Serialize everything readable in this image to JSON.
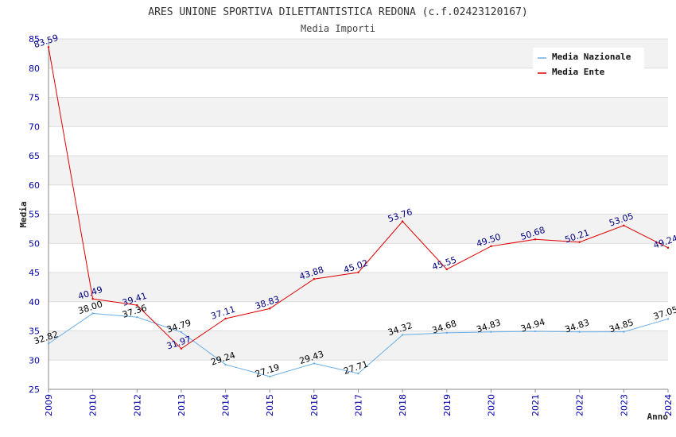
{
  "chart_data": {
    "type": "line",
    "title": "ARES UNIONE SPORTIVA DILETTANTISTICA REDONA (c.f.02423120167)",
    "subtitle": "Media Importi",
    "xlabel": "Anno",
    "ylabel": "Media",
    "ylim": [
      25,
      85
    ],
    "yticks": [
      25,
      30,
      35,
      40,
      45,
      50,
      55,
      60,
      65,
      70,
      75,
      80,
      85
    ],
    "categories": [
      "2009",
      "2010",
      "2012",
      "2013",
      "2014",
      "2015",
      "2016",
      "2017",
      "2018",
      "2019",
      "2020",
      "2021",
      "2022",
      "2023",
      "2024"
    ],
    "series": [
      {
        "name": "Media Nazionale",
        "color": "#6aaee6",
        "label_color": "#000000",
        "values": [
          32.82,
          38.0,
          37.36,
          34.79,
          29.24,
          27.19,
          29.43,
          27.71,
          34.32,
          34.68,
          34.83,
          34.94,
          34.83,
          34.85,
          37.05
        ],
        "labels": [
          "32.82",
          "38.00",
          "37.36",
          "34.79",
          "29.24",
          "27.19",
          "29.43",
          "27.71",
          "34.32",
          "34.68",
          "34.83",
          "34.94",
          "34.83",
          "34.85",
          "37.05"
        ]
      },
      {
        "name": "Media Ente",
        "color": "#e00000",
        "label_color": "#000080",
        "values": [
          83.59,
          40.49,
          39.41,
          31.97,
          37.11,
          38.83,
          43.88,
          45.02,
          53.76,
          45.55,
          49.5,
          50.68,
          50.21,
          53.05,
          49.24
        ],
        "labels": [
          "83.59",
          "40.49",
          "39.41",
          "31.97",
          "37.11",
          "38.83",
          "43.88",
          "45.02",
          "53.76",
          "45.55",
          "49.50",
          "50.68",
          "50.21",
          "53.05",
          "49.24"
        ]
      }
    ],
    "grid": true,
    "legend_position": "top-right"
  }
}
